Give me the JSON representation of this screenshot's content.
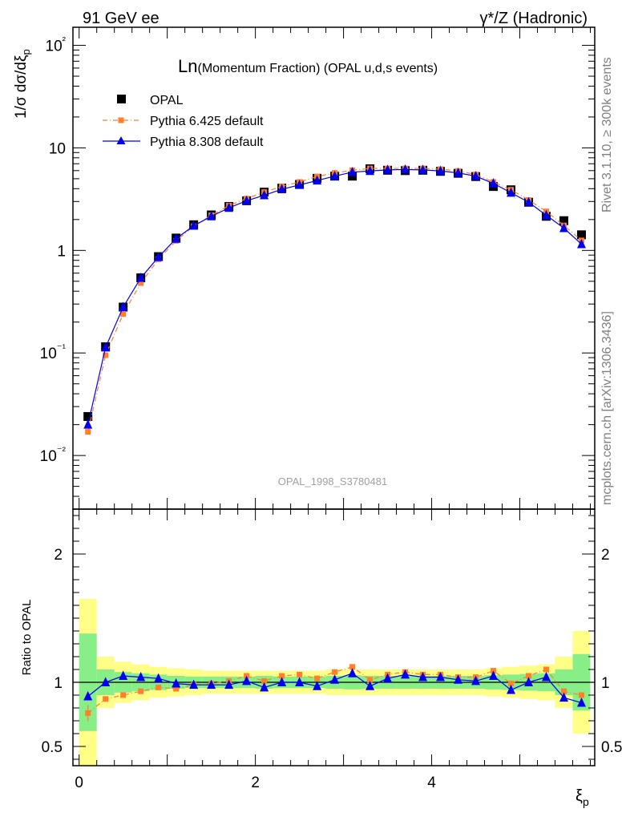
{
  "header": {
    "left": "91 GeV ee",
    "right": "γ*/Z (Hadronic)"
  },
  "side": {
    "rivet": "Rivet 3.1.10, ≥ 300k events",
    "mcplots": "mcplots.cern.ch [arXiv:1306.3436]"
  },
  "chart_data": [
    {
      "type": "line",
      "title_big": "Ln",
      "title_rest": "(Momentum Fraction) (OPAL u,d,s events)",
      "ylabel": "1/σ dσ/dξp",
      "yscale": "log",
      "ylim": [
        0.003,
        150
      ],
      "xlim": [
        -0.07,
        5.85
      ],
      "yticks": [
        "10⁻²",
        "10⁻¹",
        "1",
        "10",
        "10²"
      ],
      "watermark": "OPAL_1998_S3780481",
      "legend_position": "top-left",
      "x": [
        0.1,
        0.3,
        0.5,
        0.7,
        0.9,
        1.1,
        1.3,
        1.5,
        1.7,
        1.9,
        2.1,
        2.3,
        2.5,
        2.7,
        2.9,
        3.1,
        3.3,
        3.5,
        3.7,
        3.9,
        4.1,
        4.3,
        4.5,
        4.7,
        4.9,
        5.1,
        5.3,
        5.5,
        5.7
      ],
      "series": [
        {
          "name": "OPAL",
          "color": "#000000",
          "marker": "square",
          "values": [
            0.024,
            0.115,
            0.28,
            0.54,
            0.87,
            1.32,
            1.78,
            2.22,
            2.68,
            3.05,
            3.7,
            4.05,
            4.4,
            5.05,
            5.3,
            5.3,
            6.25,
            6.05,
            6.0,
            6.05,
            5.9,
            5.65,
            5.25,
            4.2,
            3.9,
            2.95,
            2.15,
            1.95,
            1.42
          ]
        },
        {
          "name": "Pythia 6.425 default",
          "color": "#ff7f2a",
          "marker": "small-square",
          "dash": "dashdot",
          "values": [
            0.017,
            0.095,
            0.24,
            0.48,
            0.82,
            1.24,
            1.72,
            2.2,
            2.73,
            3.2,
            3.7,
            4.2,
            4.65,
            5.25,
            5.7,
            6.05,
            6.3,
            6.3,
            6.3,
            6.3,
            6.2,
            5.95,
            5.5,
            4.65,
            3.9,
            3.1,
            2.4,
            1.75,
            1.25
          ]
        },
        {
          "name": "Pythia 8.308 default",
          "color": "#0000ee",
          "marker": "triangle",
          "values": [
            0.02,
            0.113,
            0.28,
            0.54,
            0.86,
            1.3,
            1.74,
            2.15,
            2.6,
            3.05,
            3.45,
            3.95,
            4.35,
            4.8,
            5.3,
            5.8,
            5.95,
            6.1,
            6.15,
            6.1,
            5.95,
            5.7,
            5.3,
            4.5,
            3.65,
            2.95,
            2.2,
            1.65,
            1.15
          ]
        }
      ]
    },
    {
      "type": "line",
      "ylabel": "Ratio to OPAL",
      "xlabel": "ξp",
      "ylim": [
        0.35,
        2.35
      ],
      "xlim": [
        -0.07,
        5.85
      ],
      "xticks": [
        "0",
        "2",
        "4"
      ],
      "yticks": [
        "0.5",
        "1",
        "2"
      ],
      "x": [
        0.1,
        0.3,
        0.5,
        0.7,
        0.9,
        1.1,
        1.3,
        1.5,
        1.7,
        1.9,
        2.1,
        2.3,
        2.5,
        2.7,
        2.9,
        3.1,
        3.3,
        3.5,
        3.7,
        3.9,
        4.1,
        4.3,
        4.5,
        4.7,
        4.9,
        5.1,
        5.3,
        5.5,
        5.7
      ],
      "bands": {
        "green_half": [
          0.38,
          0.1,
          0.08,
          0.07,
          0.06,
          0.05,
          0.045,
          0.045,
          0.045,
          0.045,
          0.05,
          0.045,
          0.045,
          0.045,
          0.05,
          0.055,
          0.05,
          0.05,
          0.05,
          0.05,
          0.05,
          0.05,
          0.05,
          0.055,
          0.06,
          0.065,
          0.07,
          0.1,
          0.22
        ],
        "yellow_half": [
          0.65,
          0.2,
          0.16,
          0.14,
          0.12,
          0.11,
          0.1,
          0.09,
          0.09,
          0.09,
          0.09,
          0.09,
          0.09,
          0.09,
          0.1,
          0.1,
          0.1,
          0.1,
          0.1,
          0.1,
          0.1,
          0.1,
          0.1,
          0.11,
          0.12,
          0.13,
          0.14,
          0.2,
          0.4
        ]
      },
      "series": [
        {
          "name": "Pythia 6.425 default",
          "color": "#ff7f2a",
          "values": [
            0.76,
            0.87,
            0.9,
            0.93,
            0.96,
            0.95,
            0.98,
            0.99,
            1.01,
            1.05,
            1.01,
            1.05,
            1.06,
            1.03,
            1.08,
            1.12,
            1.02,
            1.06,
            1.08,
            1.06,
            1.06,
            1.04,
            1.04,
            1.09,
            0.99,
            1.05,
            1.1,
            0.93,
            0.9
          ]
        },
        {
          "name": "Pythia 8.308 default",
          "color": "#0000ee",
          "values": [
            0.89,
            1.0,
            1.05,
            1.04,
            1.03,
            0.99,
            0.98,
            0.98,
            0.98,
            1.01,
            0.96,
            1.0,
            1.0,
            0.97,
            1.02,
            1.07,
            0.97,
            1.03,
            1.06,
            1.04,
            1.04,
            1.02,
            1.01,
            1.05,
            0.94,
            1.0,
            1.04,
            0.88,
            0.84
          ]
        }
      ]
    }
  ]
}
